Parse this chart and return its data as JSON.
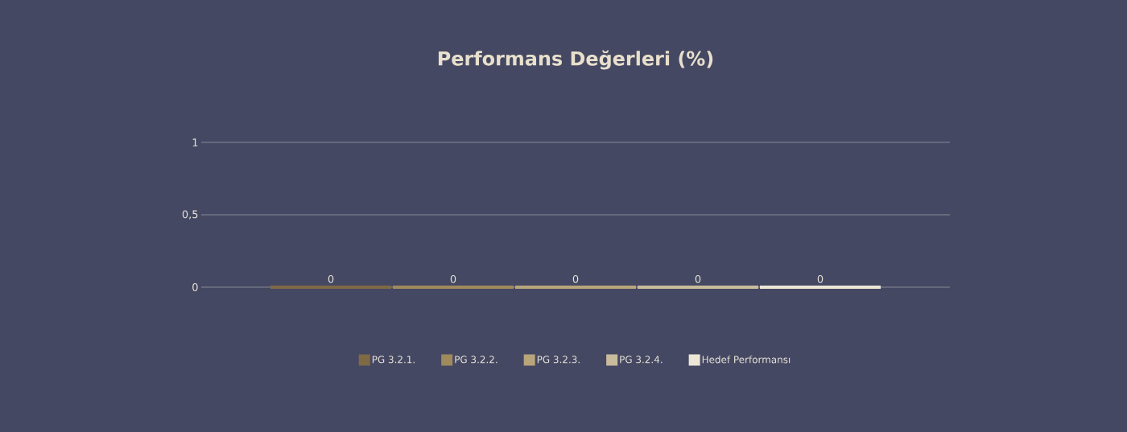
{
  "chart_data": {
    "type": "bar",
    "title": "Performans Değerleri (%)",
    "categories": [
      null
    ],
    "series": [
      {
        "name": "PG 3.2.1.",
        "color": "#7f6a45",
        "values": [
          0
        ]
      },
      {
        "name": "PG 3.2.2.",
        "color": "#a08a5c",
        "values": [
          0
        ]
      },
      {
        "name": "PG 3.2.3.",
        "color": "#b8a57a",
        "values": [
          0
        ]
      },
      {
        "name": "PG 3.2.4.",
        "color": "#c9bc9c",
        "values": [
          0
        ]
      },
      {
        "name": "Hedef Performansı",
        "color": "#ece6d6",
        "values": [
          0
        ]
      }
    ],
    "ylim": [
      0,
      1
    ],
    "yticks": [
      0,
      {
        "value": 0.5,
        "label": "0,5"
      },
      1
    ],
    "grid": "y",
    "legend": "bottom",
    "data_labels": true
  }
}
